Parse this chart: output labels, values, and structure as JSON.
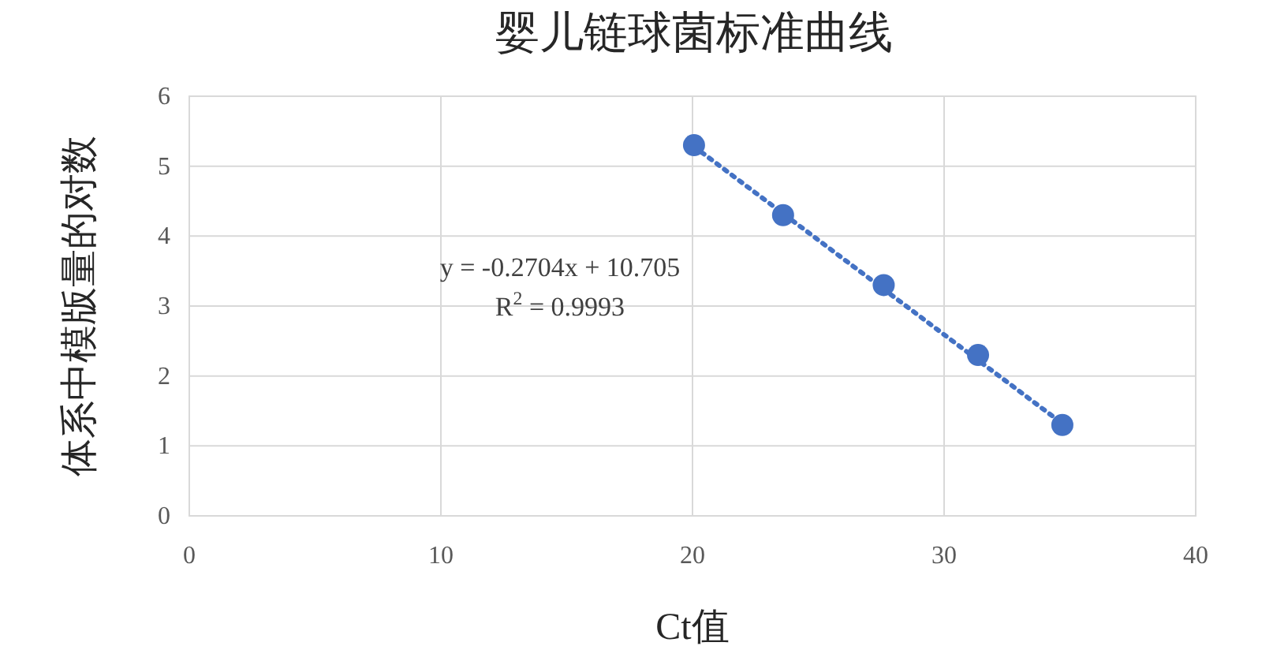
{
  "chart_data": {
    "type": "scatter",
    "title": "婴儿链球菌标准曲线",
    "xlabel": "Ct值",
    "ylabel": "体系中模版量的对数",
    "series": [
      {
        "color": "#4472c4",
        "marker": "circle",
        "x": [
          20.06,
          23.6,
          27.6,
          31.35,
          34.7
        ],
        "values": [
          5.3,
          4.3,
          3.3,
          2.3,
          1.3
        ]
      },
      {
        "type": "line",
        "color": "#4472c4",
        "line_style": "dotted",
        "marker": "none",
        "x": [
          20.06,
          34.7
        ],
        "values": [
          5.28,
          1.32
        ]
      }
    ],
    "annotations": [
      "y = -0.2704x + 10.705",
      "R$^{2}$ = 0.9993"
    ],
    "xlim": [
      0,
      40
    ],
    "xticks": [
      0,
      10,
      20,
      30,
      40
    ],
    "ylim": [
      0,
      6
    ],
    "yticks": [
      0,
      1,
      2,
      3,
      4,
      5,
      6
    ],
    "grid": true
  }
}
